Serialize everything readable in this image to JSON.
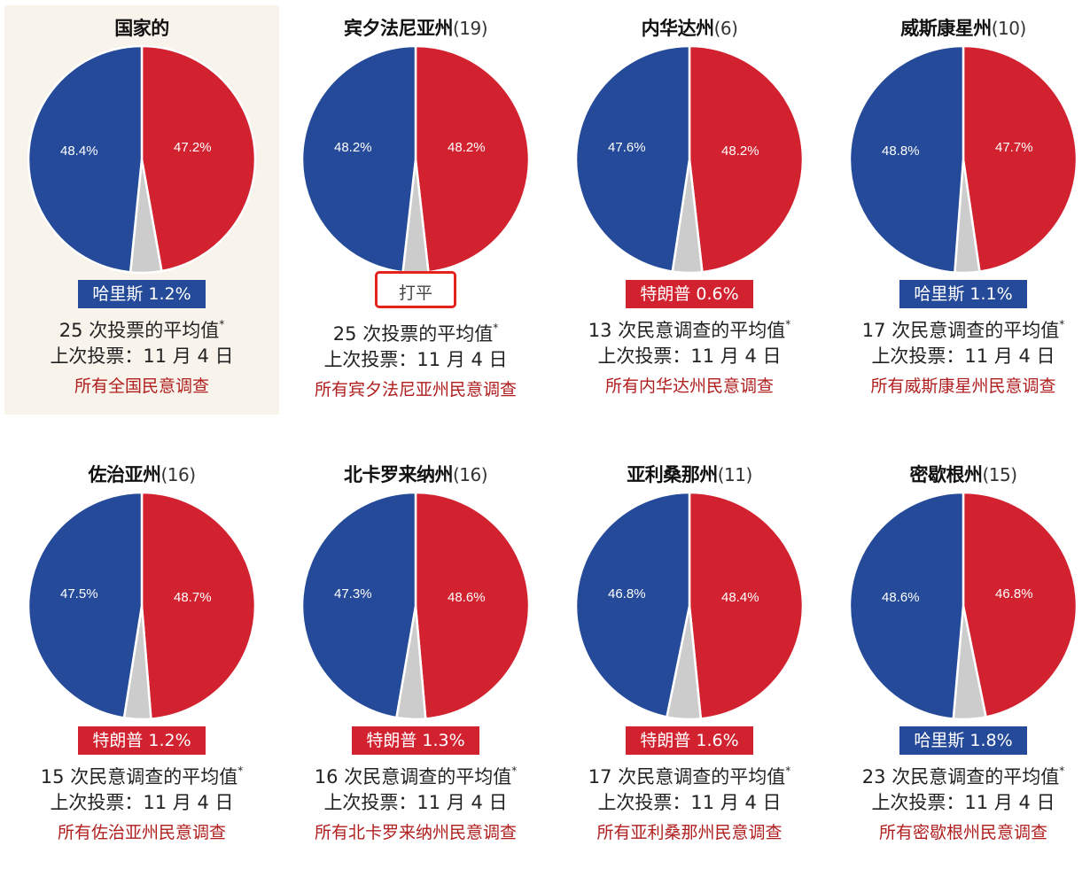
{
  "colors": {
    "harris": "#244a99",
    "trump": "#d22230",
    "other": "#cccccc",
    "link": "#b01e1e",
    "highlight_bg": "#f8f4ec",
    "tie_border": "#e5221d"
  },
  "cards": [
    {
      "name": "国家的",
      "ev": "",
      "harris": "48.4%",
      "trump": "47.2%",
      "leader": "harris",
      "badge": "哈里斯 1.2%",
      "avg": "25 次投票的平均值",
      "last": "上次投票：11 月 4 日",
      "link": "所有全国民意调查"
    },
    {
      "name": "宾夕法尼亚州",
      "ev": "(19)",
      "harris": "48.2%",
      "trump": "48.2%",
      "leader": "tie",
      "badge": "打平",
      "avg": "25 次投票的平均值",
      "last": "上次投票：11 月 4 日",
      "link": "所有宾夕法尼亚州民意调查"
    },
    {
      "name": "内华达州",
      "ev": "(6)",
      "harris": "47.6%",
      "trump": "48.2%",
      "leader": "trump",
      "badge": "特朗普 0.6%",
      "avg": "13 次民意调查的平均值",
      "last": "上次投票：11 月 4 日",
      "link": "所有内华达州民意调查"
    },
    {
      "name": "威斯康星州",
      "ev": "(10)",
      "harris": "48.8%",
      "trump": "47.7%",
      "leader": "harris",
      "badge": "哈里斯 1.1%",
      "avg": "17 次民意调查的平均值",
      "last": "上次投票：11 月 4 日",
      "link": "所有威斯康星州民意调查"
    },
    {
      "name": "佐治亚州",
      "ev": "(16)",
      "harris": "47.5%",
      "trump": "48.7%",
      "leader": "trump",
      "badge": "特朗普 1.2%",
      "avg": "15 次民意调查的平均值",
      "last": "上次投票：11 月 4 日",
      "link": "所有佐治亚州民意调查"
    },
    {
      "name": "北卡罗来纳州",
      "ev": "(16)",
      "harris": "47.3%",
      "trump": "48.6%",
      "leader": "trump",
      "badge": "特朗普 1.3%",
      "avg": "16 次民意调查的平均值",
      "last": "上次投票：11 月 4 日",
      "link": "所有北卡罗来纳州民意调查"
    },
    {
      "name": "亚利桑那州",
      "ev": "(11)",
      "harris": "46.8%",
      "trump": "48.4%",
      "leader": "trump",
      "badge": "特朗普 1.6%",
      "avg": "17 次民意调查的平均值",
      "last": "上次投票：11 月 4 日",
      "link": "所有亚利桑那州民意调查"
    },
    {
      "name": "密歇根州",
      "ev": "(15)",
      "harris": "48.6%",
      "trump": "46.8%",
      "leader": "harris",
      "badge": "哈里斯 1.8%",
      "avg": "23 次民意调查的平均值",
      "last": "上次投票：11 月 4 日",
      "link": "所有密歇根州民意调查"
    }
  ],
  "chart_data": [
    {
      "type": "pie",
      "title": "国家的",
      "categories": [
        "Harris",
        "Trump",
        "Other"
      ],
      "values": [
        48.4,
        47.2,
        4.4
      ],
      "lead": "哈里斯 1.2%"
    },
    {
      "type": "pie",
      "title": "宾夕法尼亚州(19)",
      "categories": [
        "Harris",
        "Trump",
        "Other"
      ],
      "values": [
        48.2,
        48.2,
        3.6
      ],
      "lead": "打平"
    },
    {
      "type": "pie",
      "title": "内华达州(6)",
      "categories": [
        "Harris",
        "Trump",
        "Other"
      ],
      "values": [
        47.6,
        48.2,
        4.2
      ],
      "lead": "特朗普 0.6%"
    },
    {
      "type": "pie",
      "title": "威斯康星州(10)",
      "categories": [
        "Harris",
        "Trump",
        "Other"
      ],
      "values": [
        48.8,
        47.7,
        3.5
      ],
      "lead": "哈里斯 1.1%"
    },
    {
      "type": "pie",
      "title": "佐治亚州(16)",
      "categories": [
        "Harris",
        "Trump",
        "Other"
      ],
      "values": [
        47.5,
        48.7,
        3.8
      ],
      "lead": "特朗普 1.2%"
    },
    {
      "type": "pie",
      "title": "北卡罗来纳州(16)",
      "categories": [
        "Harris",
        "Trump",
        "Other"
      ],
      "values": [
        47.3,
        48.6,
        4.1
      ],
      "lead": "特朗普 1.3%"
    },
    {
      "type": "pie",
      "title": "亚利桑那州(11)",
      "categories": [
        "Harris",
        "Trump",
        "Other"
      ],
      "values": [
        46.8,
        48.4,
        4.8
      ],
      "lead": "特朗普 1.6%"
    },
    {
      "type": "pie",
      "title": "密歇根州(15)",
      "categories": [
        "Harris",
        "Trump",
        "Other"
      ],
      "values": [
        48.6,
        46.8,
        4.6
      ],
      "lead": "哈里斯 1.8%"
    }
  ]
}
